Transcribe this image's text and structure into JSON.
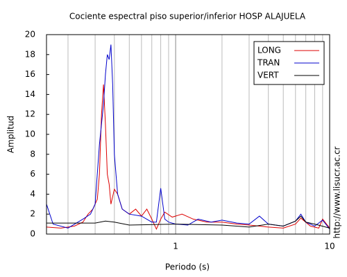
{
  "chart_data": {
    "type": "line",
    "title": "Cociente espectral piso superior/inferior  HOSP ALAJUELA",
    "x_label": "Periodo (s)",
    "y_label": "Amplitud",
    "side_text": "http://www.lisucr.ac.cr",
    "log_x": true,
    "xlim": [
      0.145,
      10
    ],
    "xticks": [
      1,
      10
    ],
    "x_minor_grid": [
      0.2,
      0.3,
      0.4,
      0.5,
      0.6,
      0.7,
      0.8,
      0.9,
      2,
      3,
      4,
      5,
      6,
      7,
      8,
      9
    ],
    "ylim": [
      0,
      20
    ],
    "yticks": [
      0,
      2,
      4,
      6,
      8,
      10,
      12,
      14,
      16,
      18,
      20
    ],
    "grid": true,
    "legend": "upper-right",
    "series": [
      {
        "name": "LONG",
        "color": "#dd0000",
        "x": [
          0.145,
          0.18,
          0.22,
          0.25,
          0.27,
          0.29,
          0.31,
          0.32,
          0.33,
          0.34,
          0.35,
          0.36,
          0.37,
          0.38,
          0.4,
          0.42,
          0.45,
          0.5,
          0.55,
          0.6,
          0.65,
          0.7,
          0.75,
          0.8,
          0.85,
          0.95,
          1.1,
          1.3,
          1.6,
          2,
          2.5,
          3,
          4,
          5,
          6,
          6.5,
          7.5,
          8.5,
          9,
          10
        ],
        "values": [
          0.7,
          0.6,
          0.8,
          1.2,
          2.0,
          2.5,
          3.5,
          6,
          12,
          15,
          11,
          6,
          5,
          3,
          4.5,
          4,
          2.5,
          2,
          2.5,
          1.8,
          2.5,
          1.5,
          0.5,
          1.5,
          2.2,
          1.7,
          2,
          1.5,
          1.2,
          1.2,
          1.0,
          0.9,
          0.7,
          0.6,
          1.0,
          1.6,
          0.8,
          0.6,
          1.5,
          0.6
        ]
      },
      {
        "name": "TRAN",
        "color": "#0000cc",
        "x": [
          0.145,
          0.16,
          0.2,
          0.25,
          0.28,
          0.3,
          0.32,
          0.34,
          0.35,
          0.36,
          0.37,
          0.38,
          0.39,
          0.4,
          0.42,
          0.45,
          0.5,
          0.6,
          0.7,
          0.75,
          0.8,
          0.85,
          0.9,
          1,
          1.2,
          1.4,
          1.7,
          2,
          2.5,
          3,
          3.5,
          4,
          5,
          6,
          6.5,
          7,
          8,
          9,
          10
        ],
        "values": [
          3,
          1,
          0.6,
          1.5,
          2,
          3,
          9,
          13,
          16,
          18,
          17.5,
          19,
          15,
          8,
          4,
          2.5,
          2,
          1.8,
          1.2,
          1.2,
          4.6,
          1.5,
          1.2,
          1.0,
          0.9,
          1.5,
          1.2,
          1.4,
          1.1,
          1.0,
          1.8,
          1.0,
          0.8,
          1.3,
          2.0,
          1.2,
          0.8,
          1.4,
          0.5
        ]
      },
      {
        "name": "VERT",
        "color": "#000000",
        "x": [
          0.145,
          0.3,
          0.35,
          0.4,
          0.5,
          1,
          2,
          3,
          4,
          5,
          6,
          6.5,
          7,
          8,
          10
        ],
        "values": [
          1.1,
          1.1,
          1.3,
          1.2,
          0.9,
          1.0,
          0.9,
          0.7,
          1.0,
          0.8,
          1.3,
          1.8,
          1.2,
          1.0,
          0.6
        ]
      }
    ]
  }
}
